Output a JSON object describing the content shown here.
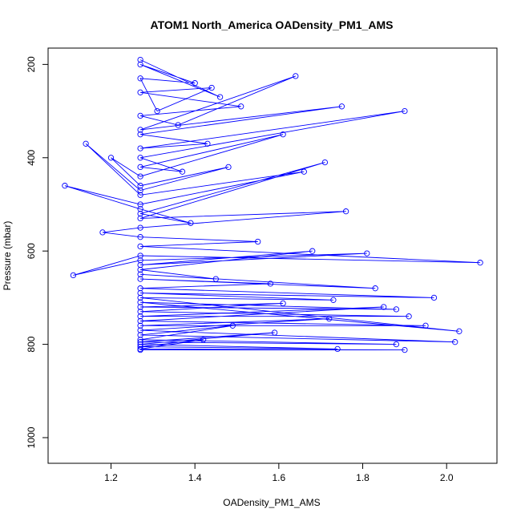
{
  "chart_data": {
    "type": "line",
    "title": "ATOM1 North_America OADensity_PM1_AMS",
    "xlabel": "OADensity_PM1_AMS",
    "ylabel": "Pressure (mbar)",
    "xlim": [
      1.05,
      2.12
    ],
    "ylim_reversed": [
      1055,
      165
    ],
    "x_ticks": [
      1.2,
      1.4,
      1.6,
      1.8,
      2.0
    ],
    "x_tick_labels": [
      "1.2",
      "1.4",
      "1.6",
      "1.8",
      "2.0"
    ],
    "y_ticks": [
      200,
      400,
      600,
      800,
      1000
    ],
    "y_tick_labels": [
      "200",
      "400",
      "600",
      "800",
      "1000"
    ],
    "series_color": "#0000ff",
    "marker": "open-circle",
    "series": [
      {
        "name": "OADensity_PM1_AMS",
        "x": [
          1.27,
          1.46,
          1.27,
          1.4,
          1.27,
          1.31,
          1.44,
          1.27,
          1.51,
          1.27,
          1.36,
          1.64,
          1.27,
          1.75,
          1.27,
          1.43,
          1.27,
          1.9,
          1.27,
          1.37,
          1.27,
          1.61,
          1.27,
          1.2,
          1.27,
          1.48,
          1.27,
          1.14,
          1.27,
          1.66,
          1.27,
          1.09,
          1.27,
          1.39,
          1.27,
          1.71,
          1.27,
          1.76,
          1.27,
          1.18,
          1.27,
          1.55,
          1.27,
          2.08,
          1.27,
          1.11,
          1.27,
          1.81,
          1.27,
          1.68,
          1.27,
          1.45,
          1.27,
          1.83,
          1.27,
          1.58,
          1.27,
          1.97,
          1.27,
          1.73,
          1.27,
          2.03,
          1.27,
          1.88,
          1.27,
          1.61,
          1.27,
          1.91,
          1.27,
          1.85,
          1.27,
          1.95,
          1.27,
          1.72,
          1.27,
          2.02,
          1.27,
          1.49,
          1.27,
          1.88,
          1.27,
          1.59,
          1.27,
          1.74,
          1.27,
          1.42,
          1.27,
          1.9,
          1.27
        ],
        "y": [
          190,
          270,
          200,
          240,
          230,
          300,
          250,
          260,
          290,
          310,
          330,
          225,
          340,
          290,
          350,
          370,
          380,
          300,
          400,
          430,
          420,
          350,
          440,
          400,
          460,
          420,
          470,
          370,
          480,
          430,
          500,
          460,
          510,
          540,
          520,
          410,
          530,
          515,
          550,
          560,
          570,
          580,
          590,
          625,
          610,
          652,
          620,
          605,
          630,
          600,
          640,
          660,
          650,
          680,
          660,
          670,
          680,
          700,
          690,
          705,
          700,
          772,
          710,
          725,
          720,
          712,
          730,
          740,
          740,
          720,
          750,
          760,
          760,
          745,
          770,
          795,
          780,
          760,
          790,
          800,
          795,
          775,
          800,
          810,
          805,
          790,
          810,
          812,
          812
        ]
      }
    ]
  }
}
